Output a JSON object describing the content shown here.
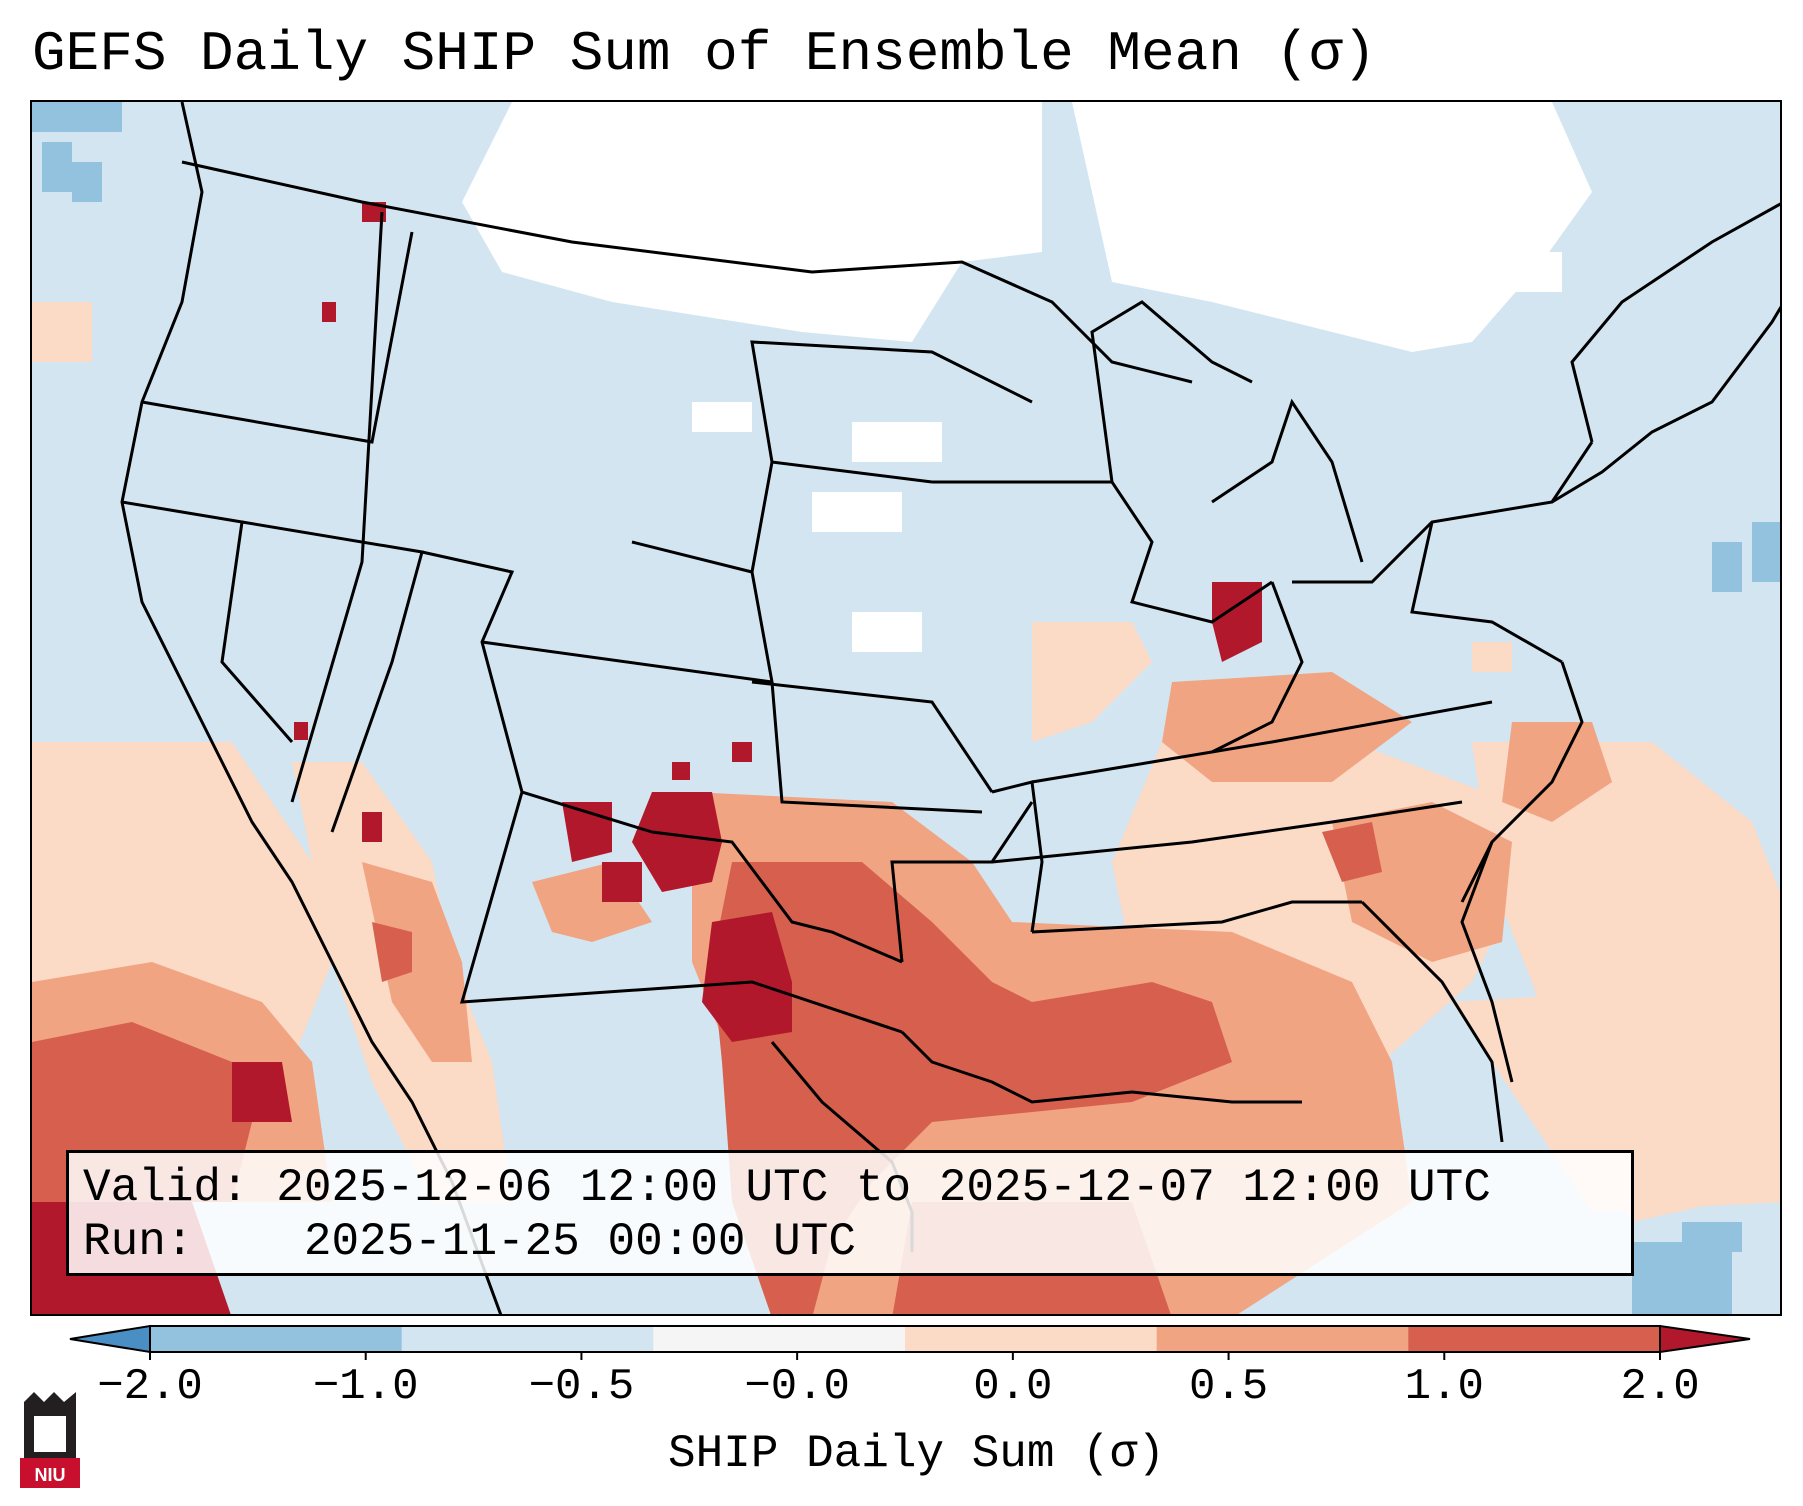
{
  "title": "GEFS Daily SHIP Sum of Ensemble Mean (σ)",
  "info": {
    "valid_label": "Valid:",
    "valid_value": "2025-12-06 12:00 UTC to 2025-12-07 12:00 UTC",
    "run_label": "Run:",
    "run_value": "2025-11-25 00:00 UTC"
  },
  "colorbar": {
    "label": "SHIP Daily Sum (σ)",
    "ticks": [
      "−2.0",
      "−1.0",
      "−0.5",
      "−0.0",
      "0.0",
      "0.5",
      "1.0",
      "2.0"
    ],
    "colors": [
      "#4a8fc4",
      "#93c2df",
      "#d2e5f1",
      "#f5f5f5",
      "#fbdac6",
      "#f0a482",
      "#d6604d",
      "#b2182b"
    ]
  },
  "logo": {
    "text": "NIU"
  }
}
